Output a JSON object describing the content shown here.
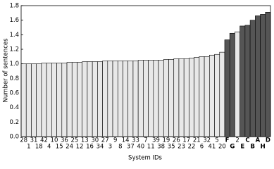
{
  "chart_data": {
    "type": "bar",
    "x_label": "System IDs",
    "y_label": "Number of sentences",
    "categories": [
      "28",
      "1",
      "31",
      "18",
      "42",
      "4",
      "10",
      "15",
      "36",
      "24",
      "25",
      "12",
      "13",
      "16",
      "30",
      "34",
      "27",
      "3",
      "9",
      "8",
      "14",
      "37",
      "33",
      "40",
      "7",
      "11",
      "39",
      "38",
      "19",
      "35",
      "26",
      "23",
      "17",
      "22",
      "21",
      "6",
      "32",
      "41",
      "5",
      "20",
      "F",
      "G",
      "2",
      "E",
      "C",
      "B",
      "A",
      "H",
      "D"
    ],
    "values": [
      1.0,
      1.0,
      1.0,
      1.0,
      1.01,
      1.01,
      1.01,
      1.01,
      1.01,
      1.02,
      1.02,
      1.02,
      1.03,
      1.03,
      1.03,
      1.03,
      1.04,
      1.04,
      1.04,
      1.04,
      1.04,
      1.04,
      1.04,
      1.05,
      1.05,
      1.05,
      1.05,
      1.05,
      1.06,
      1.06,
      1.07,
      1.07,
      1.07,
      1.08,
      1.09,
      1.1,
      1.1,
      1.12,
      1.13,
      1.16,
      1.33,
      1.42,
      1.44,
      1.52,
      1.53,
      1.6,
      1.66,
      1.68,
      1.71
    ],
    "colors": [
      "#e8e8e8",
      "#e8e8e8",
      "#e8e8e8",
      "#e8e8e8",
      "#e8e8e8",
      "#e8e8e8",
      "#e8e8e8",
      "#e8e8e8",
      "#e8e8e8",
      "#e8e8e8",
      "#e8e8e8",
      "#e8e8e8",
      "#e8e8e8",
      "#e8e8e8",
      "#e8e8e8",
      "#e8e8e8",
      "#e8e8e8",
      "#e8e8e8",
      "#e8e8e8",
      "#e8e8e8",
      "#e8e8e8",
      "#e8e8e8",
      "#e8e8e8",
      "#e8e8e8",
      "#e8e8e8",
      "#e8e8e8",
      "#e8e8e8",
      "#e8e8e8",
      "#e8e8e8",
      "#e8e8e8",
      "#e8e8e8",
      "#e8e8e8",
      "#e8e8e8",
      "#e8e8e8",
      "#e8e8e8",
      "#e8e8e8",
      "#e8e8e8",
      "#e8e8e8",
      "#e8e8e8",
      "#e8e8e8",
      "#555555",
      "#555555",
      "#e8e8e8",
      "#555555",
      "#555555",
      "#555555",
      "#555555",
      "#555555",
      "#555555"
    ],
    "ylim": [
      0,
      1.8
    ],
    "yticks": [
      {
        "value": 0,
        "label": "0.0"
      },
      0.2,
      0.4,
      0.6,
      0.8,
      {
        "value": 1,
        "label": "1.0"
      },
      1.2,
      1.4,
      1.6,
      1.8
    ]
  }
}
